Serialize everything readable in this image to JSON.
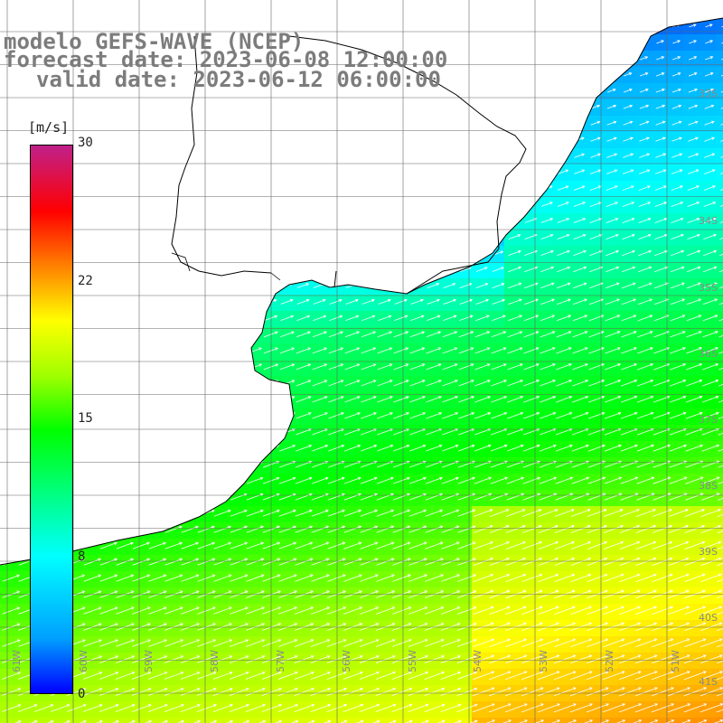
{
  "header": {
    "line1": "modelo GEFS-WAVE (NCEP)",
    "line2": "forecast date: 2023-06-08 12:00:00",
    "line3": "valid date: 2023-06-12 06:00:00"
  },
  "colorbar": {
    "unit": "[m/s]",
    "ticks": [
      "30",
      "22",
      "15",
      "8",
      "0"
    ],
    "tick_values": [
      30,
      22,
      15,
      8,
      0
    ],
    "range": [
      0,
      30
    ],
    "colors": [
      "#0000ff",
      "#00a0ff",
      "#00ffff",
      "#00ff00",
      "#a0ff00",
      "#ffff00",
      "#ff8000",
      "#ff0000",
      "#c0208a"
    ]
  },
  "grid": {
    "lat_labels": [
      "33S",
      "34S",
      "35S",
      "36S",
      "37S",
      "38S",
      "39S",
      "40S",
      "41S"
    ],
    "lon_labels": [
      "61W",
      "60W",
      "59W",
      "58W",
      "57W",
      "56W",
      "55W",
      "54W",
      "53W",
      "52W",
      "51W"
    ]
  },
  "map": {
    "land_color": "#ffffff",
    "coast_color": "#000000",
    "vector_color": "#ffffff",
    "region": "Rio de la Plata / Uruguay coast"
  }
}
